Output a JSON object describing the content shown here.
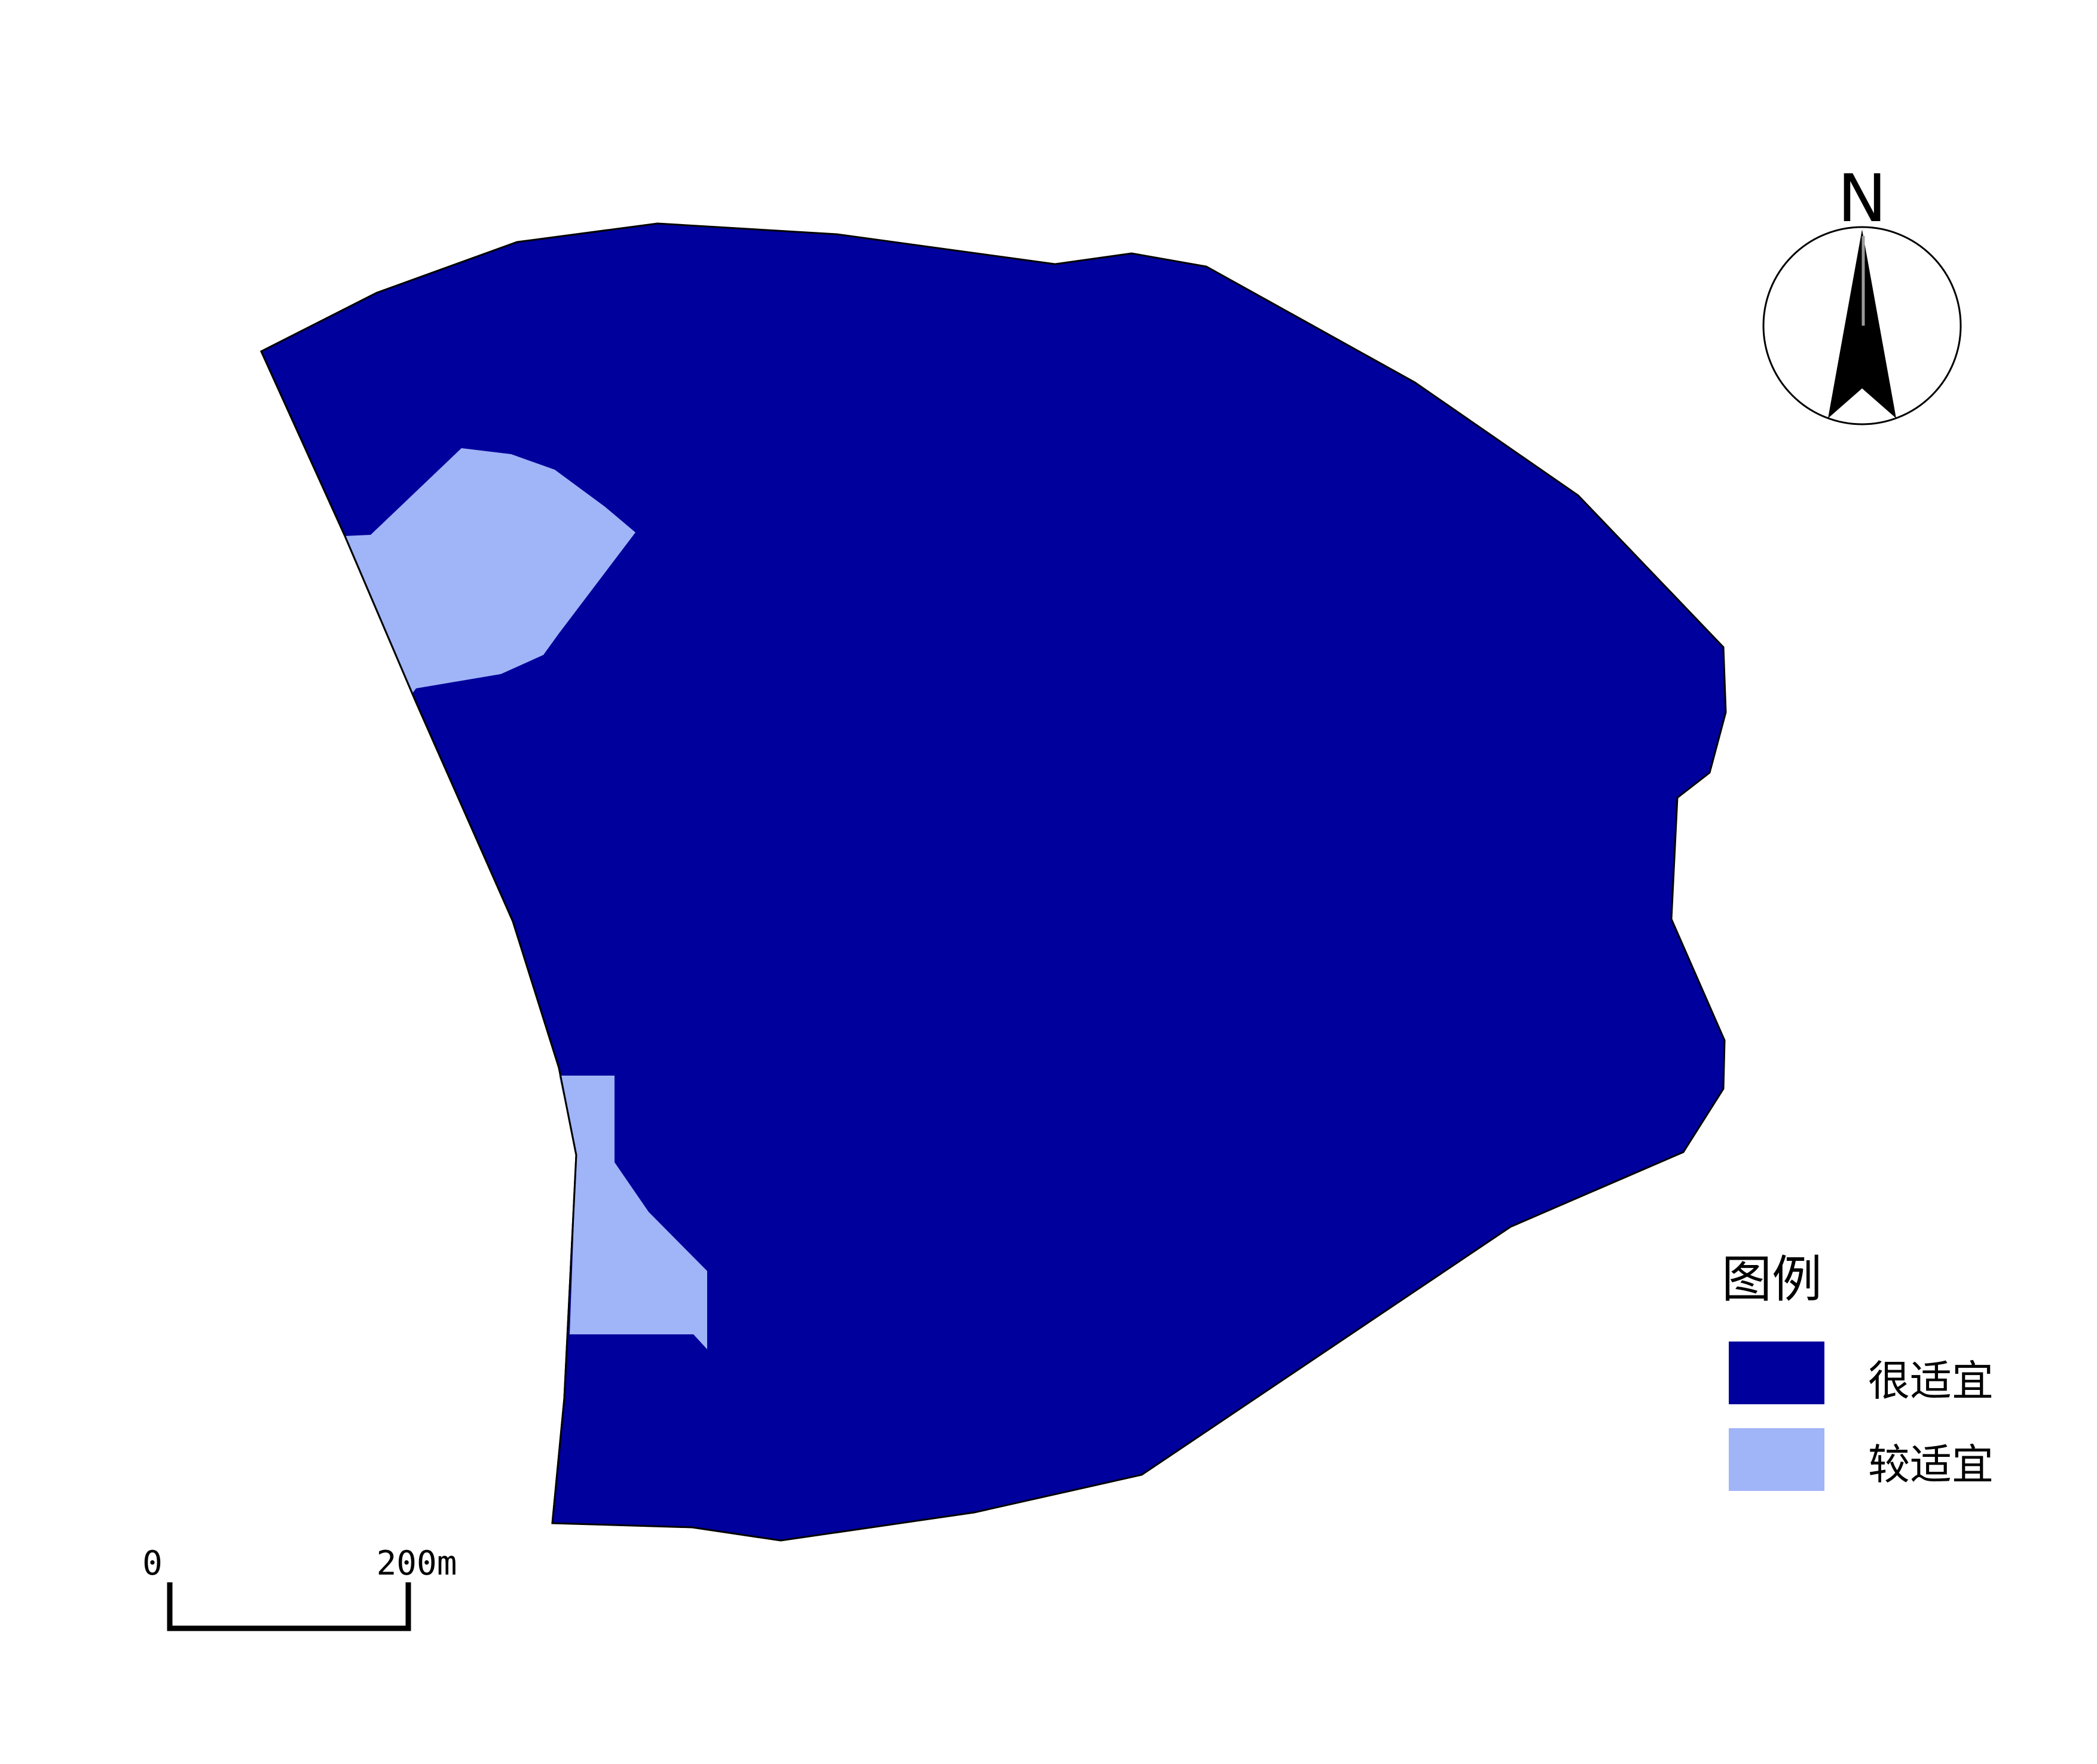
{
  "map": {
    "north_arrow": {
      "letter": "N",
      "icon": "north-arrow-icon"
    },
    "legend": {
      "title": "图例",
      "items": [
        {
          "label": "很适宜",
          "color": "#00009C"
        },
        {
          "label": "较适宜",
          "color": "#A0B4F8"
        }
      ]
    },
    "scale_bar": {
      "start_label": "0",
      "end_label": "200m"
    },
    "colors": {
      "very_suitable": "#00009C",
      "fairly_suitable": "#A0B4F8",
      "outline": "#000000",
      "background": "#FFFFFF"
    }
  }
}
